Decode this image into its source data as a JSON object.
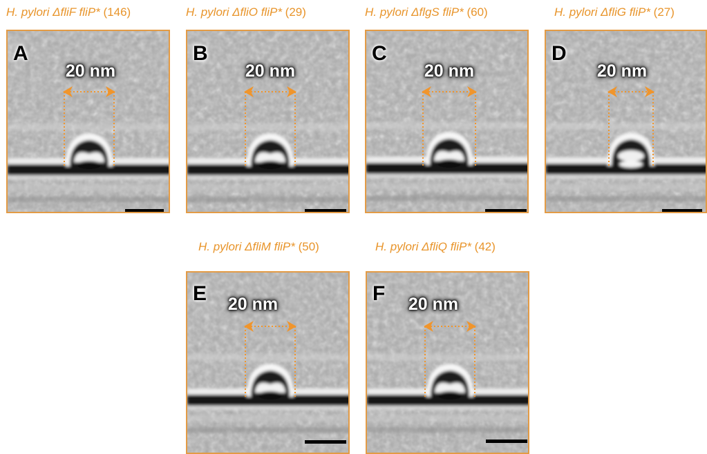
{
  "panels": [
    {
      "letter": "A",
      "strain": "H. pylori ΔfliF fliP*",
      "count": "(146)",
      "scale_text": "20 nm",
      "core_dark": true
    },
    {
      "letter": "B",
      "strain": "H. pylori ΔfliO fliP*",
      "count": "(29)",
      "scale_text": "20 nm",
      "core_dark": true
    },
    {
      "letter": "C",
      "strain": "H. pylori ΔflgS fliP*",
      "count": "(60)",
      "scale_text": "20 nm",
      "core_dark": true
    },
    {
      "letter": "D",
      "strain": "H. pylori ΔfliG fliP*",
      "count": "(27)",
      "scale_text": "20 nm",
      "core_dark": false
    },
    {
      "letter": "E",
      "strain": "H. pylori ΔfliM fliP*",
      "count": "(50)",
      "scale_text": "20 nm",
      "core_dark": true
    },
    {
      "letter": "F",
      "strain": "H. pylori ΔfliQ fliP*",
      "count": "(42)",
      "scale_text": "20 nm",
      "core_dark": true
    }
  ],
  "colors": {
    "title_orange": "#e8942a",
    "frame_orange": "#e39b45",
    "arrow_orange": "#f0952c"
  }
}
